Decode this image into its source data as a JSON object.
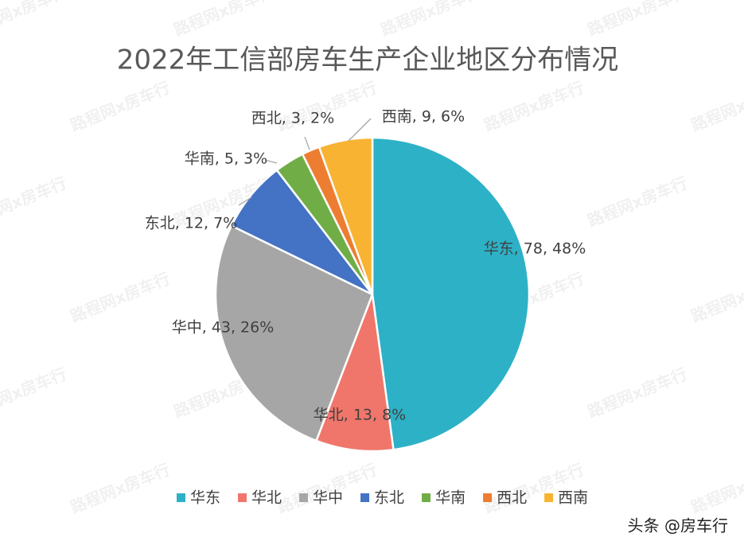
{
  "chart_data": {
    "type": "pie",
    "title": "2022年工信部房车生产企业地区分布情况",
    "categories": [
      "华东",
      "华北",
      "华中",
      "东北",
      "华南",
      "西北",
      "西南"
    ],
    "values": [
      78,
      13,
      43,
      12,
      5,
      3,
      9
    ],
    "value_labels": [
      "华东, 78, 48%",
      "华北, 13, 8%",
      "华中, 43, 26%",
      "东北, 12, 7%",
      "华南, 5, 3%",
      "西北, 3, 2%",
      "西南, 9, 6%"
    ],
    "colors": [
      "#2db1c7",
      "#f0766b",
      "#a6a6a6",
      "#4472c4",
      "#70ad47",
      "#ed7d31",
      "#f8b333"
    ],
    "legend": "bottom",
    "watermark": "路程网x房车行",
    "footer": "头条 @房车行"
  }
}
